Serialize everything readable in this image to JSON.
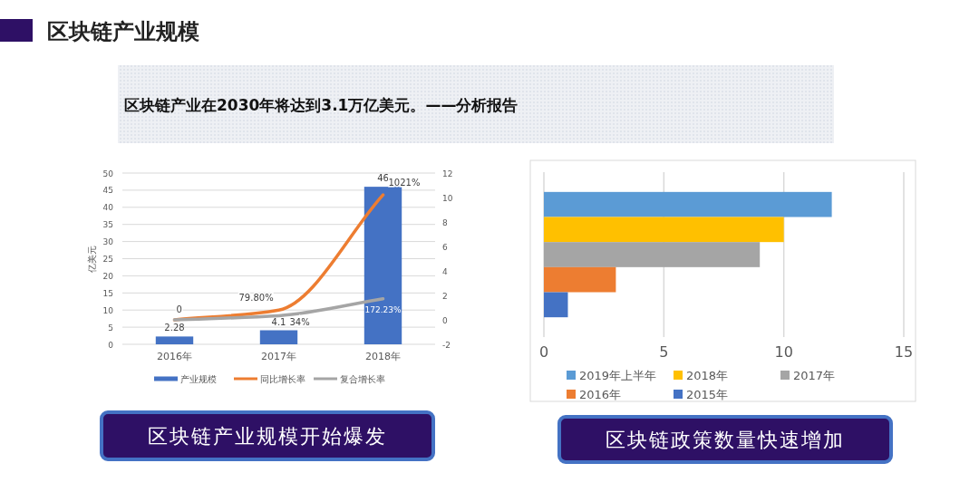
{
  "chart_data": [
    {
      "type": "other",
      "title": "区块链产业规模",
      "subtitle": "区块链产业在2030年将达到3.1万亿美元。——分析报告"
    },
    {
      "type": "bar",
      "categories": [
        "2016年",
        "2017年",
        "2018年"
      ],
      "ylabel": "亿美元",
      "ylim": [
        0,
        50
      ],
      "yticks": [
        0,
        5,
        10,
        15,
        20,
        25,
        30,
        35,
        40,
        45,
        50
      ],
      "y2lim": [
        -2,
        12
      ],
      "y2ticks": [
        -2,
        0,
        2,
        4,
        6,
        8,
        10,
        12
      ],
      "grid": "y",
      "legend": "bottom",
      "annotations": [
        "区块链产业规模开始爆发"
      ],
      "series": [
        {
          "name": "产业规模",
          "color": "#4472c4",
          "values": [
            2.28,
            4.1,
            46
          ],
          "value_labels": [
            "2.28",
            "4.1",
            "46"
          ]
        },
        {
          "name": "同比增长率",
          "type": "line",
          "axis": "y2",
          "color": "#ed7d31",
          "values": [
            0,
            0.798,
            10.21
          ],
          "value_labels": [
            "0",
            "79.80%",
            "1021%"
          ]
        },
        {
          "name": "复合增长率",
          "type": "line",
          "axis": "y2",
          "color": "#a5a5a5",
          "values": [
            0,
            0.34,
            1.7223
          ],
          "value_labels": [
            null,
            "34%",
            "172.23%"
          ]
        }
      ]
    },
    {
      "type": "bar",
      "orientation": "horizontal",
      "categories": [
        null
      ],
      "xlim": [
        0,
        15
      ],
      "xticks": [
        0,
        5,
        10,
        15
      ],
      "grid": "x",
      "legend": "bottom",
      "annotations": [
        "区块链政策数量快速增加"
      ],
      "series": [
        {
          "name": "2019年上半年",
          "color": "#5b9bd5",
          "values": [
            12
          ]
        },
        {
          "name": "2018年",
          "color": "#ffc000",
          "values": [
            10
          ]
        },
        {
          "name": "2017年",
          "color": "#a5a5a5",
          "values": [
            9
          ]
        },
        {
          "name": "2016年",
          "color": "#ed7d31",
          "values": [
            3
          ]
        },
        {
          "name": "2015年",
          "color": "#4472c4",
          "values": [
            1
          ]
        }
      ]
    }
  ]
}
